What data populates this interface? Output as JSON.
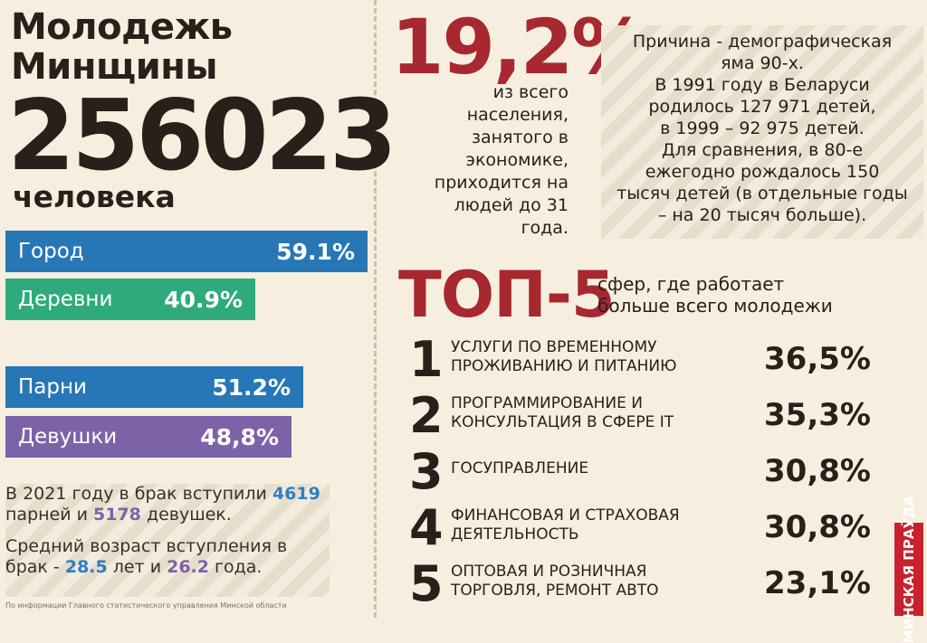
{
  "header": {
    "title_line1": "Молодежь",
    "title_line2": "Минщины",
    "total": "256023",
    "total_unit": "человека"
  },
  "bars": [
    {
      "label": "Город",
      "value": "59.1%"
    },
    {
      "label": "Деревни",
      "value": "40.9%"
    },
    {
      "label": "Парни",
      "value": "51.2%"
    },
    {
      "label": "Девушки",
      "value": "48,8%"
    }
  ],
  "marriage": {
    "line1_a": "В 2021 году в брак вступили ",
    "line1_num1": "4619",
    "line1_b": " парней и ",
    "line1_num2": "5178",
    "line1_c": " девушек.",
    "line2_a": "Средний возраст вступления в брак - ",
    "line2_num1": "28.5",
    "line2_b": " лет и ",
    "line2_num2": "26.2",
    "line2_c": " года."
  },
  "source": "По информации Главного статистического управления Минской области",
  "employment": {
    "percent": "19,2%",
    "lines": [
      "из всего",
      "населения,",
      "занятого в",
      "экономике,",
      "приходится на",
      "людей до 31",
      "года."
    ]
  },
  "reason": {
    "lines": [
      "Причина - демографическая",
      "яма 90-х.",
      "В 1991 году в Беларуси",
      "родилось 127 971 детей,",
      "в 1999 – 92 975 детей.",
      "Для сравнения, в 80-е",
      "ежегодно рождалось 150",
      "тысяч детей (в отдельные годы",
      "– на 20 тысяч больше)."
    ]
  },
  "top5": {
    "title": "ТОП-5",
    "subtitle_line1": "сфер, где работает",
    "subtitle_line2": "больше всего молодежи",
    "items": [
      {
        "num": "1",
        "label_line1": "Услуги по временному",
        "label_line2": "проживанию и питанию",
        "pct": "36,5%"
      },
      {
        "num": "2",
        "label_line1": "Программирование и",
        "label_line2": "консультация в сфере IT",
        "pct": "35,3%"
      },
      {
        "num": "3",
        "label_line1": "Госуправление",
        "label_line2": "",
        "pct": "30,8%"
      },
      {
        "num": "4",
        "label_line1": "Финансовая и страховая",
        "label_line2": "деятельность",
        "pct": "30,8%"
      },
      {
        "num": "5",
        "label_line1": "Оптовая и розничная",
        "label_line2": "торговля, ремонт авто",
        "pct": "23,1%"
      }
    ]
  },
  "logo": "МИНСКАЯ ПРАЎДА",
  "colors": {
    "accent_red": "#a7282f",
    "blue": "#2777b6",
    "green": "#2faa7c",
    "purple": "#7d62a8"
  }
}
